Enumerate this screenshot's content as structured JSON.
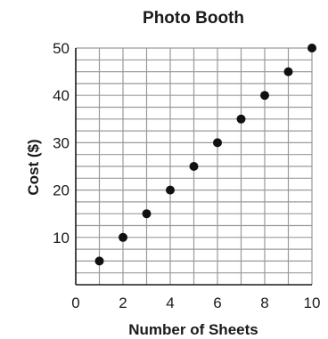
{
  "chart_data": {
    "type": "scatter",
    "title": "Photo Booth",
    "xlabel": "Number of Sheets",
    "ylabel": "Cost ($)",
    "xlim": [
      0,
      10
    ],
    "ylim": [
      0,
      50
    ],
    "x_ticks": [
      0,
      2,
      4,
      6,
      8,
      10
    ],
    "y_ticks": [
      10,
      20,
      30,
      40,
      50
    ],
    "grid": true,
    "point_color": "#111111",
    "x": [
      1,
      2,
      3,
      4,
      5,
      6,
      7,
      8,
      9,
      10
    ],
    "y": [
      5,
      10,
      15,
      20,
      25,
      30,
      35,
      40,
      45,
      50
    ]
  }
}
